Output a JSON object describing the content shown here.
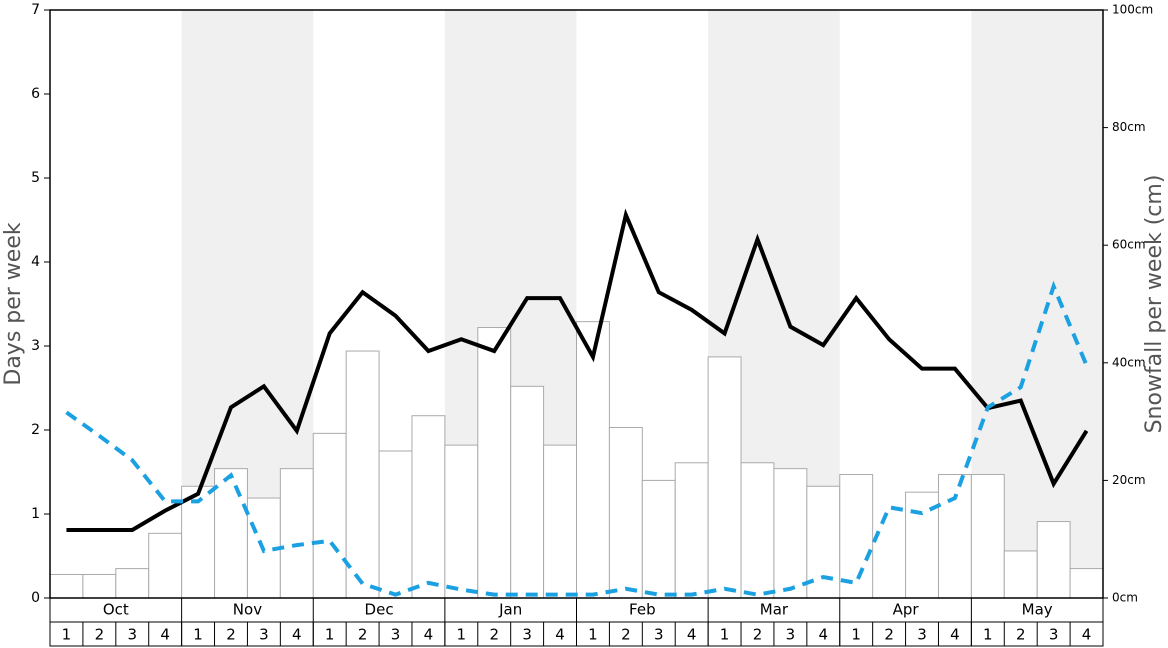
{
  "chart_data": {
    "type": "bar-line",
    "ylabel": "Days per week",
    "y2label": "Snowfall per week (cm)",
    "months": [
      "Oct",
      "Nov",
      "Dec",
      "Jan",
      "Feb",
      "Mar",
      "Apr",
      "May"
    ],
    "categories": [
      "1",
      "2",
      "3",
      "4",
      "1",
      "2",
      "3",
      "4",
      "1",
      "2",
      "3",
      "4",
      "1",
      "2",
      "3",
      "4",
      "1",
      "2",
      "3",
      "4",
      "1",
      "2",
      "3",
      "4",
      "1",
      "2",
      "3",
      "4",
      "1",
      "2",
      "3",
      "4"
    ],
    "ylim": [
      0,
      7
    ],
    "yticks": [
      0,
      1,
      2,
      3,
      4,
      5,
      6,
      7
    ],
    "y2lim": [
      0,
      100
    ],
    "y2ticks": [
      {
        "value": 0,
        "label": "0cm"
      },
      {
        "value": 20,
        "label": "20cm"
      },
      {
        "value": 40,
        "label": "40cm"
      },
      {
        "value": 60,
        "label": "60cm"
      },
      {
        "value": 80,
        "label": "80cm"
      },
      {
        "value": 100,
        "label": "100cm"
      }
    ],
    "grid": false,
    "series": [
      {
        "type": "bar",
        "axis": "y2",
        "color": "#ffffff",
        "values": [
          4,
          4,
          5,
          11,
          19,
          22,
          17,
          22,
          28,
          42,
          25,
          31,
          26,
          46,
          36,
          26,
          47,
          29,
          20,
          23,
          41,
          23,
          22,
          19,
          21,
          0,
          18,
          21,
          21,
          8,
          13,
          5
        ]
      },
      {
        "type": "line",
        "color": "#000000",
        "dash": false,
        "values": [
          0.81,
          0.81,
          0.81,
          1.04,
          1.24,
          2.27,
          2.52,
          1.99,
          3.15,
          3.64,
          3.36,
          2.94,
          3.08,
          2.94,
          3.57,
          3.57,
          2.87,
          4.56,
          3.64,
          3.43,
          3.15,
          4.27,
          3.23,
          3.01,
          3.57,
          3.08,
          2.73,
          2.73,
          2.26,
          2.35,
          1.36,
          1.99
        ]
      },
      {
        "type": "line",
        "color": "#1ba1e2",
        "dash": true,
        "values": [
          2.21,
          1.93,
          1.64,
          1.15,
          1.15,
          1.46,
          0.56,
          0.63,
          0.68,
          0.17,
          0.04,
          0.18,
          0.1,
          0.04,
          0.04,
          0.04,
          0.04,
          0.11,
          0.04,
          0.04,
          0.11,
          0.04,
          0.11,
          0.25,
          0.18,
          1.08,
          1.01,
          1.19,
          2.27,
          2.51,
          3.71,
          2.77
        ]
      }
    ]
  }
}
